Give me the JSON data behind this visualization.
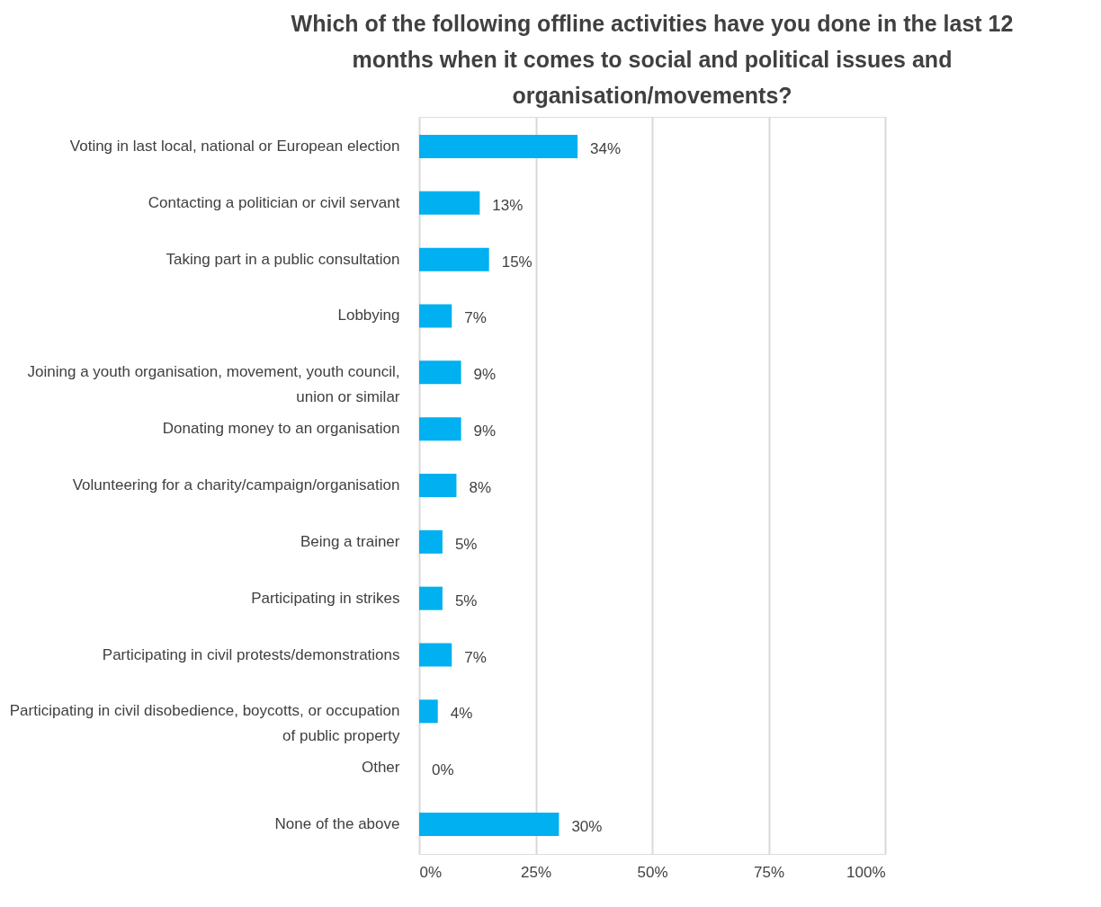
{
  "chart_data": {
    "type": "bar",
    "orientation": "horizontal",
    "title": [
      "Which of the following offline activities have you done in the last 12",
      "months when it comes to social and political issues and",
      "organisation/movements?"
    ],
    "categories": [
      "Voting in last local, national or European election",
      "Contacting a politician or civil servant",
      "Taking part in a public consultation",
      "Lobbying",
      "Joining a youth organisation, movement, youth council,\nunion or similar",
      "Donating money to an organisation",
      "Volunteering for a charity/campaign/organisation",
      "Being a trainer",
      "Participating in strikes",
      "Participating in civil protests/demonstrations",
      "Participating in civil disobedience, boycotts, or occupation\nof public property",
      "Other",
      "None of the above"
    ],
    "values": [
      34,
      13,
      15,
      7,
      9,
      9,
      8,
      5,
      5,
      7,
      4,
      0,
      30
    ],
    "value_labels": [
      "34%",
      "13%",
      "15%",
      "7%",
      "9%",
      "9%",
      "8%",
      "5%",
      "5%",
      "7%",
      "4%",
      "0%",
      "30%"
    ],
    "color": "#00b0f0",
    "xlim": [
      0,
      100
    ],
    "xticks": [
      {
        "value": 0,
        "label": "0%"
      },
      {
        "value": 25,
        "label": "25%"
      },
      {
        "value": 50,
        "label": "50%"
      },
      {
        "value": 75,
        "label": "75%"
      },
      {
        "value": 100,
        "label": "100%"
      }
    ],
    "grid": "x"
  }
}
